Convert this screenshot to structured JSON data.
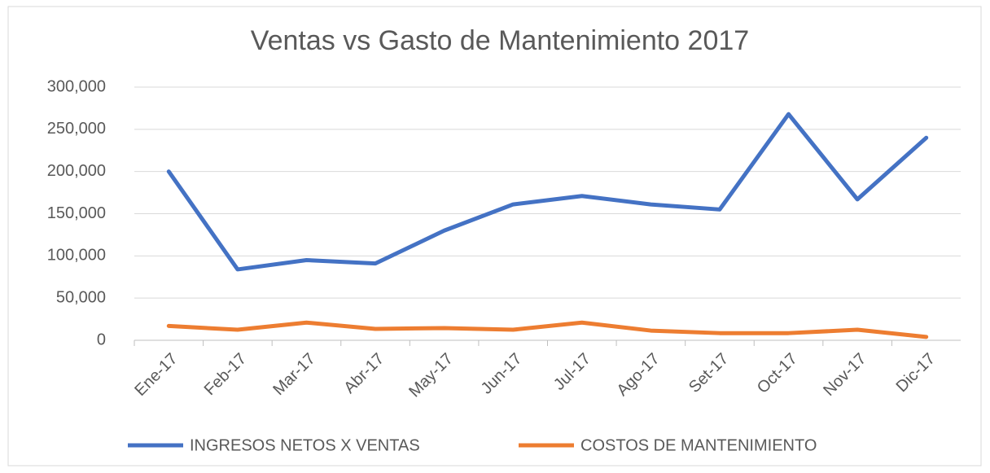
{
  "chart_data": {
    "type": "line",
    "title": "Ventas vs Gasto de Mantenimiento 2017",
    "categories": [
      "Ene-17",
      "Feb-17",
      "Mar-17",
      "Abr-17",
      "May-17",
      "Jun-17",
      "Jul-17",
      "Ago-17",
      "Set-17",
      "Oct-17",
      "Nov-17",
      "Dic-17"
    ],
    "series": [
      {
        "name": "INGRESOS NETOS X VENTAS",
        "color": "#4472c4",
        "values": [
          200000,
          84000,
          95000,
          91000,
          130000,
          161000,
          171000,
          161000,
          155000,
          268000,
          167000,
          240000
        ]
      },
      {
        "name": "COSTOS DE MANTENIMIENTO",
        "color": "#ed7d31",
        "values": [
          17000,
          12500,
          21000,
          13500,
          14500,
          12500,
          21000,
          11500,
          8500,
          8500,
          12500,
          4000
        ]
      }
    ],
    "ylim": [
      0,
      300000
    ],
    "yticks": [
      0,
      {
        "value": 50000,
        "label": "50,000"
      },
      {
        "value": 100000,
        "label": "100,000"
      },
      {
        "value": 150000,
        "label": "150,000"
      },
      {
        "value": 200000,
        "label": "200,000"
      },
      {
        "value": 250000,
        "label": "250,000"
      },
      {
        "value": 300000,
        "label": "300,000"
      }
    ],
    "grid": true,
    "legend": "bottom"
  }
}
